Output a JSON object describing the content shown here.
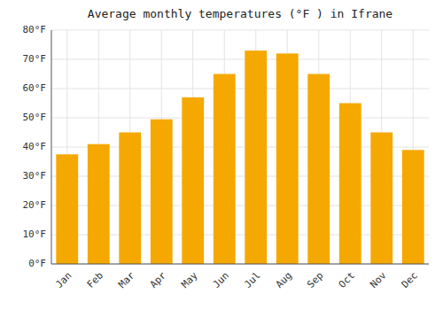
{
  "chart_data": {
    "type": "bar",
    "title": "Average monthly temperatures (°F ) in Ifrane",
    "categories": [
      "Jan",
      "Feb",
      "Mar",
      "Apr",
      "May",
      "Jun",
      "Jul",
      "Aug",
      "Sep",
      "Oct",
      "Nov",
      "Dec"
    ],
    "values": [
      37.5,
      41,
      45,
      49.5,
      57,
      65,
      73,
      72,
      65,
      55,
      45,
      39
    ],
    "color": "#F5A800",
    "ylim": [
      0,
      80
    ],
    "yticks": [
      {
        "value": 0,
        "label": "0°F"
      },
      {
        "value": 10,
        "label": "10°F"
      },
      {
        "value": 20,
        "label": "20°F"
      },
      {
        "value": 30,
        "label": "30°F"
      },
      {
        "value": 40,
        "label": "40°F"
      },
      {
        "value": 50,
        "label": "50°F"
      },
      {
        "value": 60,
        "label": "60°F"
      },
      {
        "value": 70,
        "label": "70°F"
      },
      {
        "value": 80,
        "label": "80°F"
      }
    ],
    "grid": true
  }
}
